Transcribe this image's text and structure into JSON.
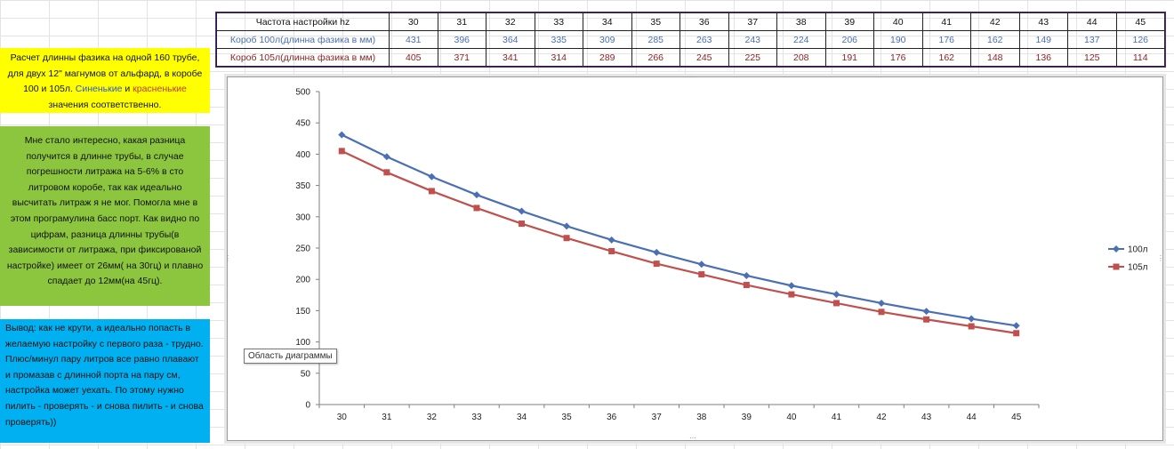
{
  "notes": {
    "yellow": {
      "line1": "Расчет длинны фазика на одной 160 трубе, для двух 12\" магнумов от альфард, в коробе 100 и 105л. ",
      "blue_word": "Синенькие",
      "and": " и ",
      "red_word": "красненькие",
      "line2": " значения соответственно."
    },
    "green": "Мне стало интересно, какая разница получится в длинне трубы, в случае погрешности литража на 5-6% в сто литровом коробе, так как идеально высчитать литраж я не мог. Помогла мне в этом програмулина басс порт.  Как видно по цифрам, разница длинны трубы(в зависимости от литража, при фиксированой настройке) имеет от 26мм( на 30гц) и плавно спадает до 12мм(на 45гц).",
    "blue": "Вывод: как не крути, а идеально попасть в желаемую настройку с первого раза - трудно. Плюс/минул пару литров все равно плавают и промазав с длинной порта на пару см, настройка может уехать. По этому нужно пилить - проверять - и снова пилить - и снова проверять))"
  },
  "table": {
    "freq_label": "Частота настройки hz",
    "row100_label": "Короб 100л(длинна фазика в мм)",
    "row105_label": "Короб 105л(длинна фазика в мм)",
    "freqs": [
      "30",
      "31",
      "32",
      "33",
      "34",
      "35",
      "36",
      "37",
      "38",
      "39",
      "40",
      "41",
      "42",
      "43",
      "44",
      "45"
    ],
    "row100": [
      "431",
      "396",
      "364",
      "335",
      "309",
      "285",
      "263",
      "243",
      "224",
      "206",
      "190",
      "176",
      "162",
      "149",
      "137",
      "126"
    ],
    "row105": [
      "405",
      "371",
      "341",
      "314",
      "289",
      "266",
      "245",
      "225",
      "208",
      "191",
      "176",
      "162",
      "148",
      "136",
      "125",
      "114"
    ]
  },
  "tooltip": "Область диаграммы",
  "chart_data": {
    "type": "line",
    "categories": [
      "30",
      "31",
      "32",
      "33",
      "34",
      "35",
      "36",
      "37",
      "38",
      "39",
      "40",
      "41",
      "42",
      "43",
      "44",
      "45"
    ],
    "series": [
      {
        "name": "100л",
        "values": [
          431,
          396,
          364,
          335,
          309,
          285,
          263,
          243,
          224,
          206,
          190,
          176,
          162,
          149,
          137,
          126
        ],
        "color": "#4a6fb5",
        "marker": "diamond"
      },
      {
        "name": "105л",
        "values": [
          405,
          371,
          341,
          314,
          289,
          266,
          245,
          225,
          208,
          191,
          176,
          162,
          148,
          136,
          125,
          114
        ],
        "color": "#c0504d",
        "marker": "square"
      }
    ],
    "ylim": [
      0,
      500
    ],
    "yticks": [
      0,
      50,
      100,
      150,
      200,
      250,
      300,
      350,
      400,
      450,
      500
    ],
    "grid": false,
    "legend": "right"
  }
}
